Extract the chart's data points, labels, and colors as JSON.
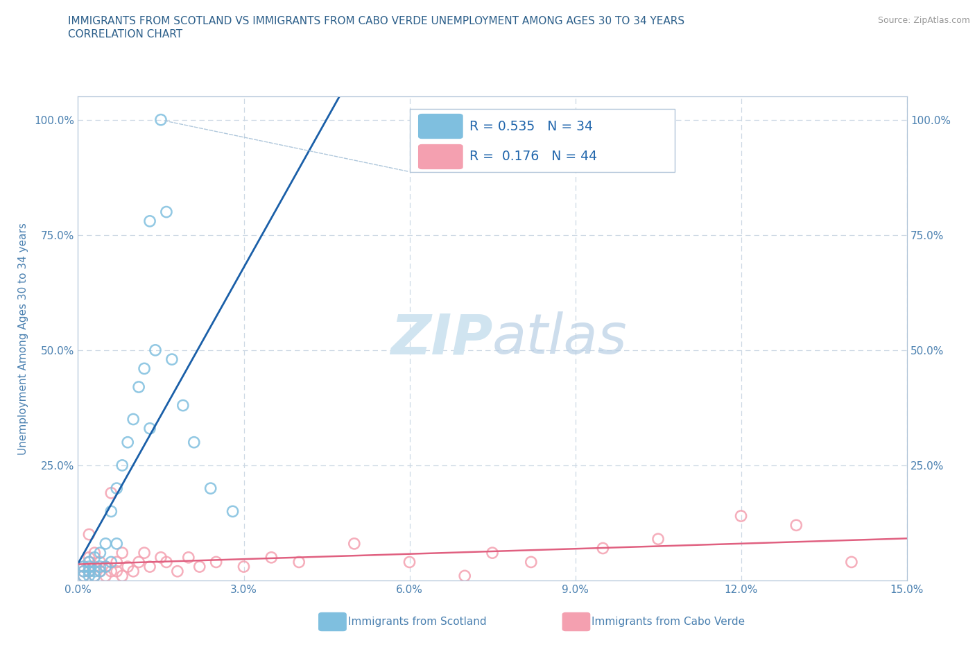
{
  "title_line1": "IMMIGRANTS FROM SCOTLAND VS IMMIGRANTS FROM CABO VERDE UNEMPLOYMENT AMONG AGES 30 TO 34 YEARS",
  "title_line2": "CORRELATION CHART",
  "source_text": "Source: ZipAtlas.com",
  "ylabel": "Unemployment Among Ages 30 to 34 years",
  "xlim": [
    0.0,
    0.15
  ],
  "ylim": [
    0.0,
    1.05
  ],
  "xticks": [
    0.0,
    0.03,
    0.06,
    0.09,
    0.12,
    0.15
  ],
  "xticklabels": [
    "0.0%",
    "3.0%",
    "6.0%",
    "9.0%",
    "12.0%",
    "15.0%"
  ],
  "yticks": [
    0.0,
    0.25,
    0.5,
    0.75,
    1.0
  ],
  "yticklabels_left": [
    "",
    "25.0%",
    "50.0%",
    "75.0%",
    "100.0%"
  ],
  "yticklabels_right": [
    "",
    "25.0%",
    "50.0%",
    "75.0%",
    "100.0%"
  ],
  "scotland_color": "#7fbfdf",
  "caboverde_color": "#f4a0b0",
  "scotland_R": 0.535,
  "scotland_N": 34,
  "caboverde_R": 0.176,
  "caboverde_N": 44,
  "trend_color_scotland": "#1a5fa8",
  "trend_color_caboverde": "#e06080",
  "watermark_zip": "ZIP",
  "watermark_atlas": "atlas",
  "watermark_color": "#d0e4f0",
  "legend_text_color": "#2166ac",
  "scotland_x": [
    0.001,
    0.001,
    0.001,
    0.002,
    0.002,
    0.002,
    0.002,
    0.003,
    0.003,
    0.003,
    0.004,
    0.004,
    0.004,
    0.005,
    0.005,
    0.006,
    0.006,
    0.007,
    0.007,
    0.008,
    0.009,
    0.01,
    0.011,
    0.012,
    0.013,
    0.014,
    0.016,
    0.017,
    0.019,
    0.021,
    0.024,
    0.028,
    0.015,
    0.013
  ],
  "scotland_y": [
    0.02,
    0.01,
    0.03,
    0.02,
    0.04,
    0.01,
    0.03,
    0.05,
    0.01,
    0.02,
    0.03,
    0.06,
    0.02,
    0.08,
    0.03,
    0.15,
    0.04,
    0.2,
    0.08,
    0.25,
    0.3,
    0.35,
    0.42,
    0.46,
    0.33,
    0.5,
    0.8,
    0.48,
    0.38,
    0.3,
    0.2,
    0.15,
    1.0,
    0.78
  ],
  "caboverde_x": [
    0.001,
    0.001,
    0.001,
    0.002,
    0.002,
    0.002,
    0.003,
    0.003,
    0.003,
    0.004,
    0.004,
    0.005,
    0.005,
    0.006,
    0.006,
    0.007,
    0.007,
    0.008,
    0.008,
    0.009,
    0.01,
    0.011,
    0.012,
    0.013,
    0.015,
    0.016,
    0.018,
    0.02,
    0.022,
    0.025,
    0.03,
    0.035,
    0.04,
    0.05,
    0.06,
    0.07,
    0.075,
    0.082,
    0.095,
    0.105,
    0.12,
    0.13,
    0.14,
    0.002
  ],
  "caboverde_y": [
    0.01,
    0.02,
    0.03,
    0.04,
    0.02,
    0.05,
    0.01,
    0.03,
    0.06,
    0.02,
    0.04,
    0.01,
    0.03,
    0.19,
    0.02,
    0.04,
    0.02,
    0.06,
    0.01,
    0.03,
    0.02,
    0.04,
    0.06,
    0.03,
    0.05,
    0.04,
    0.02,
    0.05,
    0.03,
    0.04,
    0.03,
    0.05,
    0.04,
    0.08,
    0.04,
    0.01,
    0.06,
    0.04,
    0.07,
    0.09,
    0.14,
    0.12,
    0.04,
    0.1
  ],
  "grid_color": "#ccd8e4",
  "bg_color": "#ffffff",
  "title_color": "#2c5f8a",
  "tick_color": "#4a80b0",
  "spine_color": "#b0c4d8"
}
